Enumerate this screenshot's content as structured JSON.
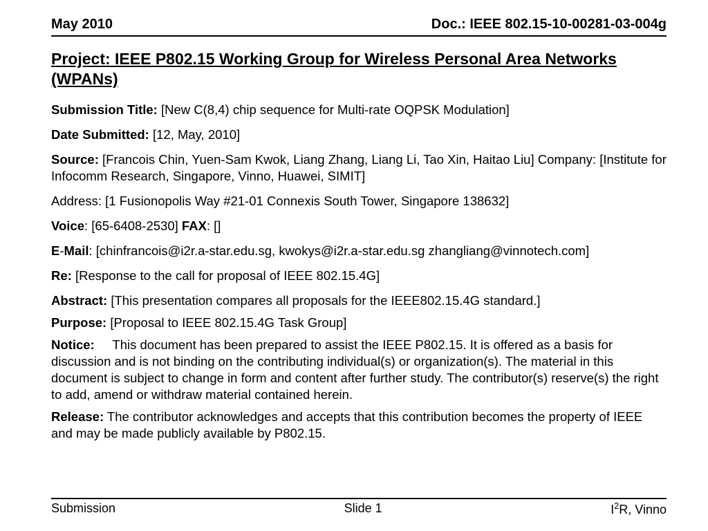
{
  "header": {
    "date": "May 2010",
    "doc": "Doc.: IEEE 802.15-10-00281-03-004g"
  },
  "title": "Project: IEEE P802.15 Working Group for Wireless Personal Area Networks (WPANs)",
  "fields": {
    "submission_title_label": "Submission Title:",
    "submission_title_value": " [New C(8,4) chip sequence for Multi-rate OQPSK Modulation]",
    "date_submitted_label": "Date Submitted:",
    "date_submitted_value": "  [12, May, 2010]",
    "source_label": "Source:",
    "source_value": "  [Francois Chin, Yuen-Sam Kwok, Liang Zhang, Liang Li, Tao Xin, Haitao Liu]    Company: [Institute for Infocomm Research, Singapore, Vinno, Huawei, SIMIT]",
    "address_label": "Address:",
    "address_value": " [1 Fusionopolis Way #21-01 Connexis South Tower,  Singapore 138632]",
    "voice_label": "Voice",
    "voice_value": ": [65-6408-2530]  ",
    "fax_label": "FAX",
    "fax_value": ": []",
    "email_label_e": "E",
    "email_label_dash": "-",
    "email_label_mail": "Mail",
    "email_value": ": [chinfrancois@i2r.a-star.edu.sg, kwokys@i2r.a-star.edu.sg zhangliang@vinnotech.com]",
    "re_label": "Re:",
    "re_value": " [Response to the call for proposal of IEEE 802.15.4G]",
    "abstract_label": "Abstract:",
    "abstract_value": "  [This presentation compares all proposals for the IEEE802.15.4G standard.]",
    "purpose_label": "Purpose:",
    "purpose_value": "  [Proposal to IEEE 802.15.4G Task Group]",
    "notice_label": "Notice:",
    "notice_value": "     This document has been prepared to assist the IEEE P802.15.  It is offered as a basis for discussion and is not binding on the contributing individual(s) or organization(s). The material in this document is subject to change in form and content after further study. The contributor(s) reserve(s) the right to add, amend or withdraw material contained herein.",
    "release_label": "Release:",
    "release_value": "   The contributor acknowledges and accepts that this contribution becomes the property of IEEE and may be made publicly available by P802.15."
  },
  "footer": {
    "left": "Submission",
    "center": "Slide 1",
    "right_prefix": "I",
    "right_sup": "2",
    "right_suffix": "R, Vinno"
  }
}
